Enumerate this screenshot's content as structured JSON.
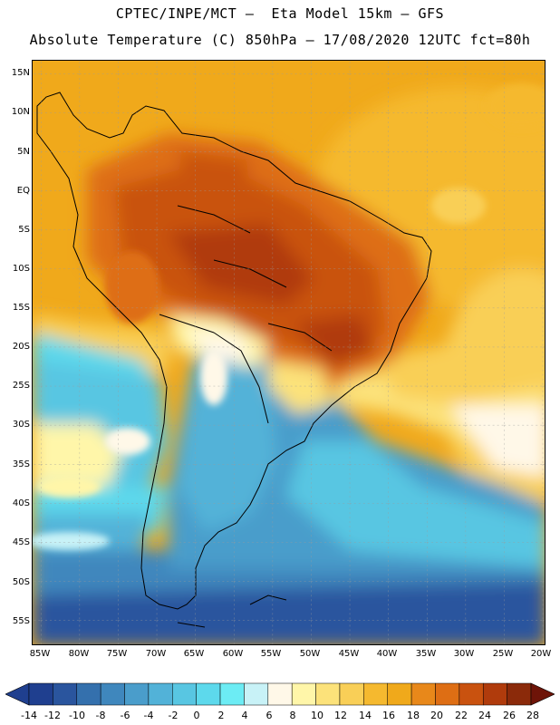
{
  "header": {
    "line1": "CPTEC/INPE/MCT –  Eta Model 15km – GFS",
    "line2": "Absolute Temperature (C) 850hPa – 17/08/2020 12UTC fct=80h"
  },
  "map": {
    "lat_labels": [
      "15N",
      "10N",
      "5N",
      "EQ",
      "5S",
      "10S",
      "15S",
      "20S",
      "25S",
      "30S",
      "35S",
      "40S",
      "45S",
      "50S",
      "55S"
    ],
    "lon_labels": [
      "85W",
      "80W",
      "75W",
      "70W",
      "65W",
      "60W",
      "55W",
      "50W",
      "45W",
      "40W",
      "35W",
      "30W",
      "25W",
      "20W"
    ]
  },
  "colorbar": {
    "labels": [
      "-14",
      "-12",
      "-10",
      "-8",
      "-6",
      "-4",
      "-2",
      "0",
      "2",
      "4",
      "6",
      "8",
      "10",
      "12",
      "14",
      "16",
      "18",
      "20",
      "22",
      "24",
      "26",
      "28"
    ],
    "colors": [
      "#1f3f8f",
      "#2a559e",
      "#3470ad",
      "#3f87bd",
      "#4a9dcb",
      "#52b2d8",
      "#58c6e2",
      "#5dd9ec",
      "#6cecf4",
      "#c8f2f7",
      "#fff8e8",
      "#fff6a9",
      "#fce27a",
      "#f9cf57",
      "#f5b92f",
      "#f0a91b",
      "#e8881a",
      "#de6e14",
      "#c9520f",
      "#b03b0c",
      "#8b2a0a"
    ]
  }
}
